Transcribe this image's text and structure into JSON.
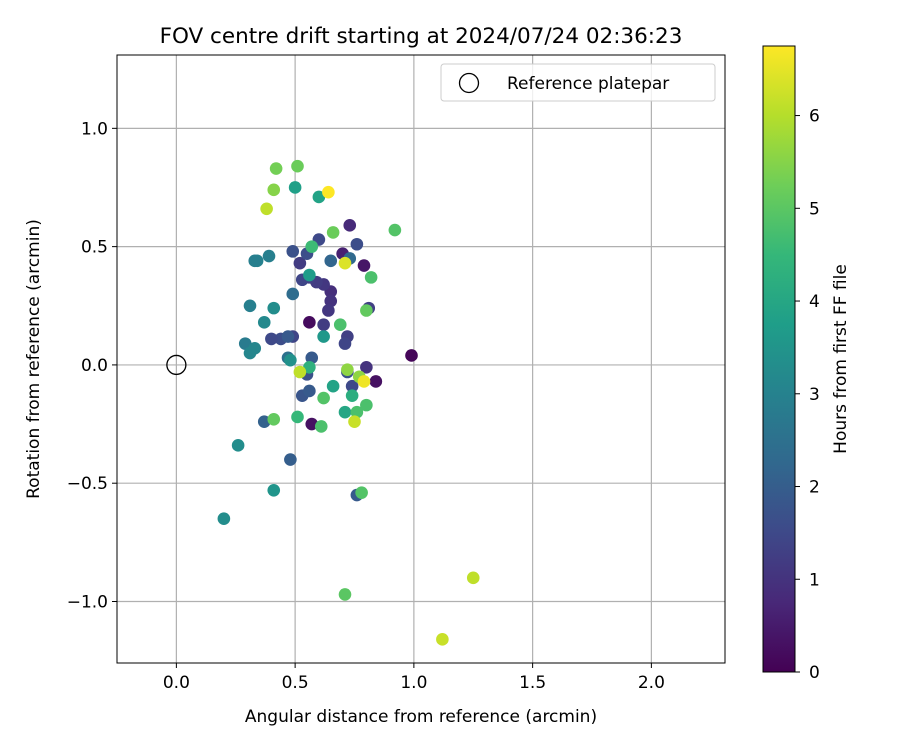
{
  "chart_data": {
    "type": "scatter",
    "title": "FOV centre drift starting at 2024/07/24 02:36:23",
    "xlabel": "Angular distance from reference (arcmin)",
    "ylabel": "Rotation from reference (arcmin)",
    "xlim": [
      -0.25,
      2.31
    ],
    "ylim": [
      -1.26,
      1.31
    ],
    "xticks": [
      0.0,
      0.5,
      1.0,
      1.5,
      2.0
    ],
    "xtick_labels": [
      "0.0",
      "0.5",
      "1.0",
      "1.5",
      "2.0"
    ],
    "yticks": [
      -1.0,
      -0.5,
      0.0,
      0.5,
      1.0
    ],
    "ytick_labels": [
      "−1.0",
      "−0.5",
      "0.0",
      "0.5",
      "1.0"
    ],
    "grid": true,
    "legend": {
      "location": "upper right",
      "entries": [
        "Reference platepar"
      ]
    },
    "reference_point": {
      "x": 0.0,
      "y": 0.0,
      "label": "Reference platepar"
    },
    "colorbar": {
      "label": "Hours from first FF file",
      "min": 0,
      "max": 6.75,
      "ticks": [
        0,
        1,
        2,
        3,
        4,
        5,
        6
      ],
      "tick_labels": [
        "0",
        "1",
        "2",
        "3",
        "4",
        "5",
        "6"
      ],
      "colormap": "viridis"
    },
    "series": [
      {
        "name": "FOV centre",
        "colormap_field": "h",
        "points": [
          {
            "x": 0.99,
            "y": 0.04,
            "h": 0.1
          },
          {
            "x": 0.84,
            "y": -0.07,
            "h": 0.3
          },
          {
            "x": 0.79,
            "y": 0.42,
            "h": 0.4
          },
          {
            "x": 0.56,
            "y": 0.18,
            "h": 0.2
          },
          {
            "x": 0.57,
            "y": -0.25,
            "h": 0.3
          },
          {
            "x": 0.7,
            "y": 0.47,
            "h": 0.6
          },
          {
            "x": 0.73,
            "y": 0.59,
            "h": 0.8
          },
          {
            "x": 0.65,
            "y": 0.31,
            "h": 0.9
          },
          {
            "x": 0.65,
            "y": 0.27,
            "h": 1.0
          },
          {
            "x": 0.64,
            "y": 0.23,
            "h": 1.1
          },
          {
            "x": 0.62,
            "y": 0.34,
            "h": 1.1
          },
          {
            "x": 0.59,
            "y": 0.35,
            "h": 1.2
          },
          {
            "x": 0.56,
            "y": 0.37,
            "h": 1.3
          },
          {
            "x": 0.53,
            "y": 0.36,
            "h": 1.4
          },
          {
            "x": 0.52,
            "y": 0.43,
            "h": 1.2
          },
          {
            "x": 0.6,
            "y": 0.53,
            "h": 1.5
          },
          {
            "x": 0.55,
            "y": 0.47,
            "h": 1.6
          },
          {
            "x": 0.49,
            "y": 0.48,
            "h": 1.7
          },
          {
            "x": 0.76,
            "y": 0.51,
            "h": 1.6
          },
          {
            "x": 0.72,
            "y": 0.12,
            "h": 1.3
          },
          {
            "x": 0.71,
            "y": 0.09,
            "h": 1.4
          },
          {
            "x": 0.62,
            "y": 0.17,
            "h": 1.2
          },
          {
            "x": 0.8,
            "y": -0.01,
            "h": 1.0
          },
          {
            "x": 0.81,
            "y": 0.24,
            "h": 1.3
          },
          {
            "x": 0.74,
            "y": -0.09,
            "h": 1.5
          },
          {
            "x": 0.72,
            "y": -0.03,
            "h": 1.7
          },
          {
            "x": 0.49,
            "y": 0.12,
            "h": 1.4
          },
          {
            "x": 0.44,
            "y": 0.11,
            "h": 1.6
          },
          {
            "x": 0.4,
            "y": 0.11,
            "h": 1.5
          },
          {
            "x": 0.47,
            "y": 0.12,
            "h": 1.9
          },
          {
            "x": 0.57,
            "y": 0.03,
            "h": 1.9
          },
          {
            "x": 0.53,
            "y": -0.13,
            "h": 1.8
          },
          {
            "x": 0.56,
            "y": -0.11,
            "h": 1.9
          },
          {
            "x": 0.55,
            "y": -0.04,
            "h": 1.7
          },
          {
            "x": 0.76,
            "y": -0.55,
            "h": 1.9
          },
          {
            "x": 0.48,
            "y": -0.4,
            "h": 2.0
          },
          {
            "x": 0.37,
            "y": -0.24,
            "h": 2.1
          },
          {
            "x": 0.65,
            "y": 0.44,
            "h": 2.2
          },
          {
            "x": 0.73,
            "y": 0.45,
            "h": 2.3
          },
          {
            "x": 0.49,
            "y": 0.3,
            "h": 2.4
          },
          {
            "x": 0.47,
            "y": 0.03,
            "h": 2.5
          },
          {
            "x": 0.29,
            "y": 0.09,
            "h": 2.8
          },
          {
            "x": 0.39,
            "y": 0.46,
            "h": 2.9
          },
          {
            "x": 0.34,
            "y": 0.44,
            "h": 3.0
          },
          {
            "x": 0.33,
            "y": 0.44,
            "h": 2.9
          },
          {
            "x": 0.31,
            "y": 0.25,
            "h": 2.9
          },
          {
            "x": 0.37,
            "y": 0.18,
            "h": 3.2
          },
          {
            "x": 0.33,
            "y": 0.07,
            "h": 3.1
          },
          {
            "x": 0.31,
            "y": 0.05,
            "h": 3.1
          },
          {
            "x": 0.41,
            "y": 0.24,
            "h": 3.3
          },
          {
            "x": 0.48,
            "y": 0.02,
            "h": 3.4
          },
          {
            "x": 0.26,
            "y": -0.34,
            "h": 3.3
          },
          {
            "x": 0.2,
            "y": -0.65,
            "h": 3.3
          },
          {
            "x": 0.41,
            "y": -0.53,
            "h": 3.5
          },
          {
            "x": 0.62,
            "y": 0.12,
            "h": 3.6
          },
          {
            "x": 0.56,
            "y": 0.38,
            "h": 3.7
          },
          {
            "x": 0.5,
            "y": 0.75,
            "h": 3.8
          },
          {
            "x": 0.6,
            "y": 0.71,
            "h": 3.9
          },
          {
            "x": 0.66,
            "y": -0.09,
            "h": 3.9
          },
          {
            "x": 0.71,
            "y": -0.2,
            "h": 4.0
          },
          {
            "x": 0.74,
            "y": -0.13,
            "h": 4.2
          },
          {
            "x": 0.56,
            "y": -0.01,
            "h": 4.3
          },
          {
            "x": 0.51,
            "y": -0.22,
            "h": 4.5
          },
          {
            "x": 0.57,
            "y": 0.5,
            "h": 4.6
          },
          {
            "x": 0.69,
            "y": 0.17,
            "h": 4.8
          },
          {
            "x": 0.62,
            "y": -0.14,
            "h": 4.9
          },
          {
            "x": 0.61,
            "y": -0.26,
            "h": 4.8
          },
          {
            "x": 0.76,
            "y": -0.2,
            "h": 4.8
          },
          {
            "x": 0.8,
            "y": -0.17,
            "h": 4.8
          },
          {
            "x": 0.78,
            "y": -0.54,
            "h": 4.9
          },
          {
            "x": 0.71,
            "y": -0.97,
            "h": 5.0
          },
          {
            "x": 0.41,
            "y": -0.23,
            "h": 5.1
          },
          {
            "x": 0.92,
            "y": 0.57,
            "h": 4.9
          },
          {
            "x": 0.82,
            "y": 0.37,
            "h": 4.8
          },
          {
            "x": 0.8,
            "y": 0.23,
            "h": 5.1
          },
          {
            "x": 0.66,
            "y": 0.56,
            "h": 5.2
          },
          {
            "x": 0.51,
            "y": 0.84,
            "h": 5.2
          },
          {
            "x": 0.42,
            "y": 0.83,
            "h": 5.3
          },
          {
            "x": 0.41,
            "y": 0.74,
            "h": 5.5
          },
          {
            "x": 0.72,
            "y": -0.02,
            "h": 5.6
          },
          {
            "x": 0.77,
            "y": -0.05,
            "h": 5.6
          },
          {
            "x": 0.52,
            "y": -0.03,
            "h": 6.1
          },
          {
            "x": 0.75,
            "y": -0.24,
            "h": 6.2
          },
          {
            "x": 0.38,
            "y": 0.66,
            "h": 6.1
          },
          {
            "x": 0.71,
            "y": 0.43,
            "h": 6.4
          },
          {
            "x": 1.25,
            "y": -0.9,
            "h": 6.1
          },
          {
            "x": 1.12,
            "y": -1.16,
            "h": 6.2
          },
          {
            "x": 0.79,
            "y": -0.07,
            "h": 6.6
          },
          {
            "x": 0.64,
            "y": 0.73,
            "h": 6.75
          }
        ]
      }
    ]
  }
}
